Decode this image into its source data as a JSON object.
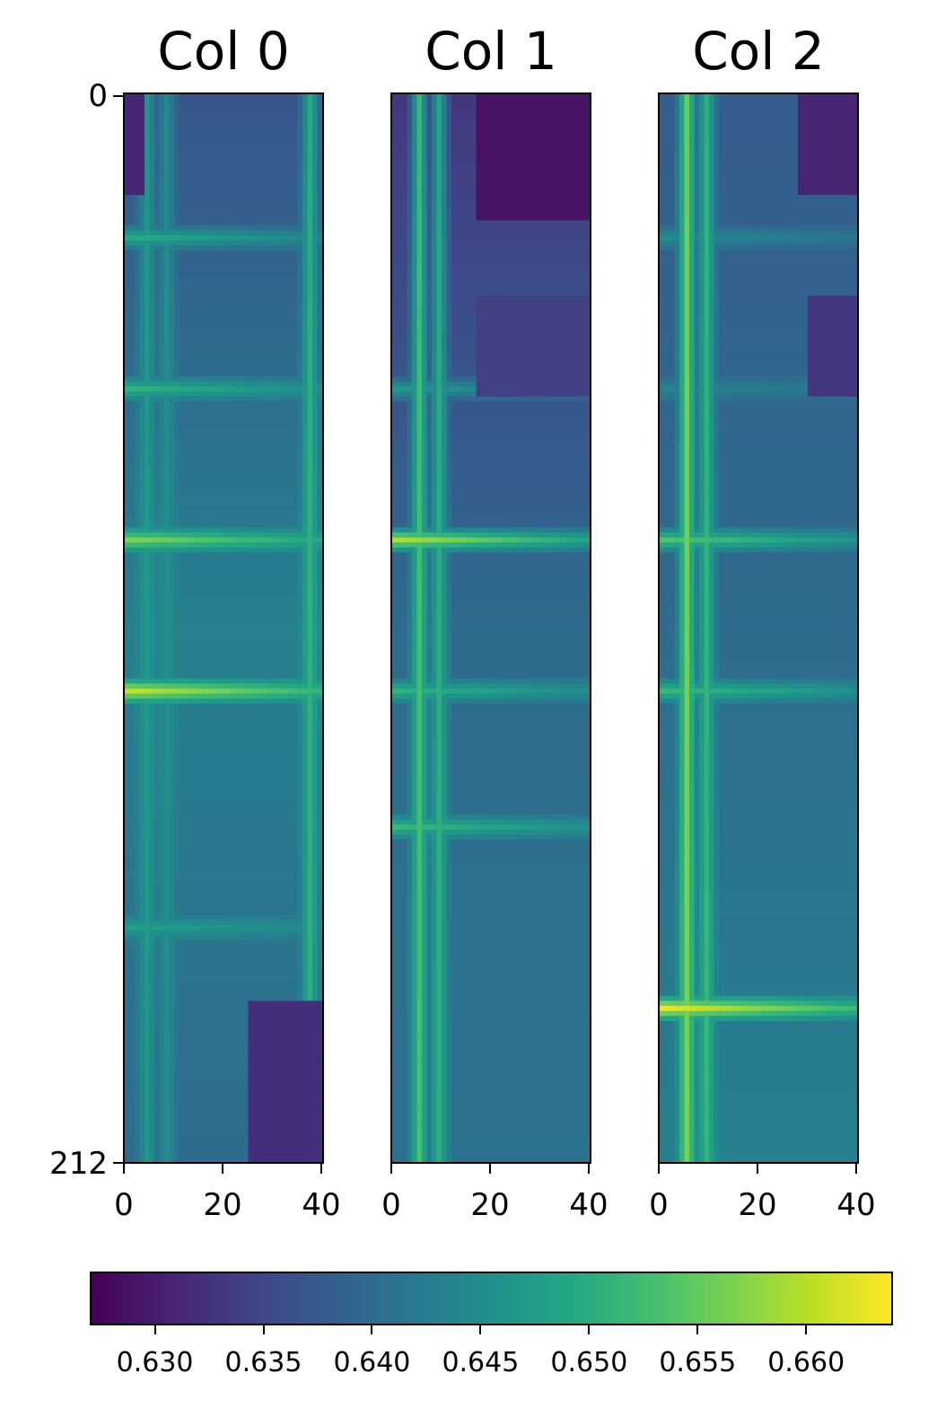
{
  "chart_data": {
    "type": "heatmap",
    "colormap": "viridis",
    "vmin": 0.627,
    "vmax": 0.664,
    "rows": 212,
    "cols": 40,
    "yticks": [
      0,
      212
    ],
    "xticks": [
      0,
      20,
      40
    ],
    "colorbar_ticks": [
      "0.630",
      "0.635",
      "0.640",
      "0.645",
      "0.650",
      "0.655",
      "0.660"
    ],
    "colorbar_tick_values": [
      0.63,
      0.635,
      0.64,
      0.645,
      0.65,
      0.655,
      0.66
    ],
    "panels": [
      {
        "title": "Col 0",
        "base": {
          "top": 0.637,
          "mid": 0.643,
          "bottom": 0.64
        },
        "bright_rows": [
          {
            "row": 28,
            "value": 0.65
          },
          {
            "row": 58,
            "value": 0.651
          },
          {
            "row": 88,
            "value": 0.657
          },
          {
            "row": 118,
            "value": 0.661
          },
          {
            "row": 165,
            "value": 0.648
          }
        ],
        "bright_cols": [
          {
            "col": 4,
            "value": 0.648
          },
          {
            "col": 8,
            "value": 0.646
          },
          {
            "col": 37,
            "value": 0.652
          }
        ],
        "dark_regions": [
          {
            "row_from": 0,
            "row_to": 20,
            "col_from": 0,
            "col_to": 4,
            "value": 0.631
          },
          {
            "row_from": 180,
            "row_to": 212,
            "col_from": 25,
            "col_to": 40,
            "value": 0.632
          }
        ]
      },
      {
        "title": "Col 1",
        "base": {
          "top": 0.633,
          "mid": 0.64,
          "bottom": 0.641
        },
        "bright_rows": [
          {
            "row": 58,
            "value": 0.647
          },
          {
            "row": 88,
            "value": 0.66
          },
          {
            "row": 118,
            "value": 0.651
          },
          {
            "row": 145,
            "value": 0.652
          }
        ],
        "bright_cols": [
          {
            "col": 5,
            "value": 0.655
          },
          {
            "col": 9,
            "value": 0.652
          }
        ],
        "dark_regions": [
          {
            "row_from": 0,
            "row_to": 25,
            "col_from": 17,
            "col_to": 40,
            "value": 0.629
          },
          {
            "row_from": 40,
            "row_to": 60,
            "col_from": 17,
            "col_to": 40,
            "value": 0.634
          }
        ]
      },
      {
        "title": "Col 2",
        "base": {
          "top": 0.638,
          "mid": 0.64,
          "bottom": 0.643
        },
        "bright_rows": [
          {
            "row": 28,
            "value": 0.645
          },
          {
            "row": 58,
            "value": 0.644
          },
          {
            "row": 88,
            "value": 0.654
          },
          {
            "row": 118,
            "value": 0.652
          },
          {
            "row": 181,
            "value": 0.663
          }
        ],
        "bright_cols": [
          {
            "col": 5,
            "value": 0.659
          },
          {
            "col": 9,
            "value": 0.653
          }
        ],
        "dark_regions": [
          {
            "row_from": 0,
            "row_to": 20,
            "col_from": 28,
            "col_to": 40,
            "value": 0.631
          },
          {
            "row_from": 40,
            "row_to": 60,
            "col_from": 30,
            "col_to": 40,
            "value": 0.633
          }
        ]
      }
    ]
  }
}
